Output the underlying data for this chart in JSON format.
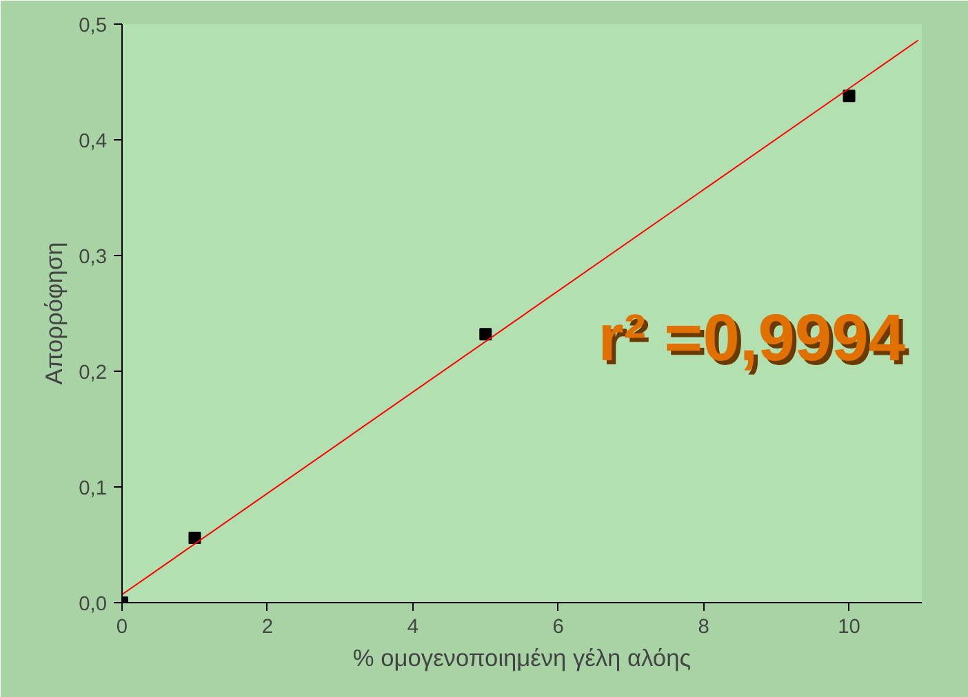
{
  "chart_data": {
    "type": "scatter",
    "xlabel": "% ομογενοποιημένη γέλη αλόης",
    "ylabel": "Απορρόφηση",
    "series": [
      {
        "color": "#000000",
        "marker": "square",
        "x": [
          0,
          1,
          5,
          10
        ],
        "values": [
          0,
          0.056,
          0.232,
          0.438
        ]
      },
      {
        "type": "line",
        "color": "#ff0000",
        "marker": "none",
        "x": [
          0,
          10.95
        ],
        "values": [
          0.007,
          0.486
        ]
      }
    ],
    "xlim": [
      0,
      11
    ],
    "ylim": [
      0,
      0.5
    ],
    "xticks": [
      0,
      2,
      4,
      6,
      8,
      10
    ],
    "yticks": [
      {
        "value": 0,
        "label": "0,0"
      },
      {
        "value": 0.1,
        "label": "0,1"
      },
      {
        "value": 0.2,
        "label": "0,2"
      },
      {
        "value": 0.3,
        "label": "0,3"
      },
      {
        "value": 0.4,
        "label": "0,4"
      },
      {
        "value": 0.5,
        "label": "0,5"
      }
    ],
    "annotations": [
      "r² =0,9994"
    ],
    "grid": false
  }
}
